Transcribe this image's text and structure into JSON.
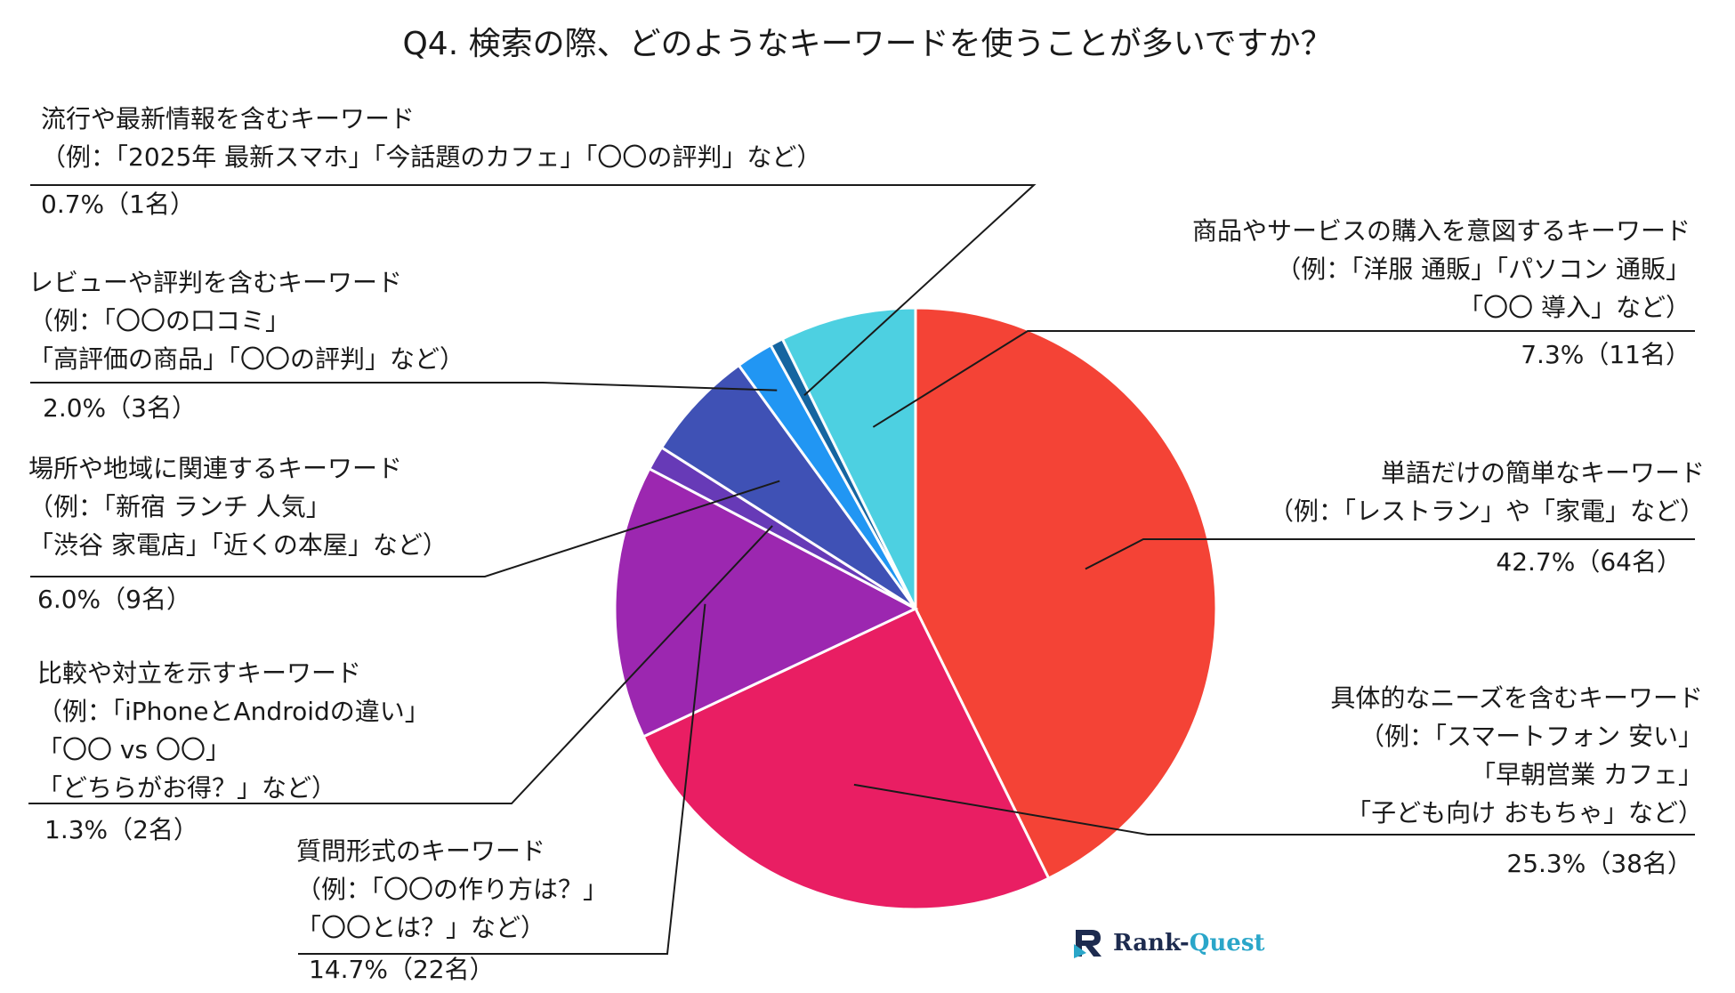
{
  "chart_data": {
    "type": "pie",
    "title": "Q4. 検索の際、どのようなキーワードを使うことが多いですか？",
    "start_angle_deg": 0,
    "direction": "clockwise",
    "slices": [
      {
        "name": "単語だけの簡単なキーワード",
        "value": 42.7,
        "count_label": "42.7%（64名）",
        "color": "#f44336",
        "lines": [
          "単語だけの簡単なキーワード",
          "（例：「レストラン」や「家電」など）"
        ]
      },
      {
        "name": "具体的なニーズを含むキーワード",
        "value": 25.3,
        "count_label": "25.3%（38名）",
        "color": "#e91e63",
        "lines": [
          "具体的なニーズを含むキーワード",
          "（例：「スマートフォン 安い」",
          "「早朝営業 カフェ」",
          "「子ども向け おもちゃ」など）"
        ]
      },
      {
        "name": "質問形式のキーワード",
        "value": 14.7,
        "count_label": "14.7%（22名）",
        "color": "#9c27b0",
        "lines": [
          "質問形式のキーワード",
          "（例：「〇〇の作り方は？」",
          "「〇〇とは？」など）"
        ]
      },
      {
        "name": "比較や対立を示すキーワード",
        "value": 1.3,
        "count_label": "1.3%（2名）",
        "color": "#673ab7",
        "lines": [
          "比較や対立を示すキーワード",
          "（例：「iPhoneとAndroidの違い」",
          "「〇〇 vs 〇〇」",
          "「どちらがお得？」など）"
        ]
      },
      {
        "name": "場所や地域に関連するキーワード",
        "value": 6.0,
        "count_label": "6.0%（9名）",
        "color": "#3f51b5",
        "lines": [
          "場所や地域に関連するキーワード",
          "（例：「新宿 ランチ 人気」",
          "「渋谷 家電店」「近くの本屋」など）"
        ]
      },
      {
        "name": "レビューや評判を含むキーワード",
        "value": 2.0,
        "count_label": "2.0%（3名）",
        "color": "#2196f3",
        "lines": [
          "レビューや評判を含むキーワード",
          "（例：「〇〇の口コミ」",
          "「高評価の商品」「〇〇の評判」など）"
        ]
      },
      {
        "name": "流行や最新情報を含むキーワード",
        "value": 0.7,
        "count_label": "0.7%（1名）",
        "color": "#1565a0",
        "lines": [
          "流行や最新情報を含むキーワード",
          "（例：「2025年 最新スマホ」「今話題のカフェ」「〇〇の評判」など）"
        ]
      },
      {
        "name": "商品やサービスの購入を意図するキーワード",
        "value": 7.3,
        "count_label": "7.3%（11名）",
        "color": "#4dd0e1",
        "lines": [
          "商品やサービスの購入を意図するキーワード",
          "（例：「洋服 通販」「パソコン 通販」",
          "「〇〇 導入」など）"
        ]
      }
    ]
  },
  "logo": {
    "part1": "Rank-",
    "part2": "Quest"
  }
}
